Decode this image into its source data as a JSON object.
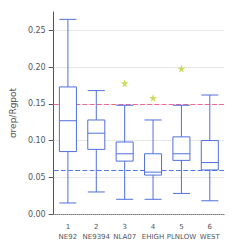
{
  "chart_data": {
    "type": "boxplot",
    "ylabel": "σrep/Rgpot",
    "categories": [
      "1\nNE92",
      "2\nNE9394",
      "3\nNLA07",
      "4\nEHIGH",
      "5\nPLNLOW",
      "6\nWEST"
    ],
    "boxes": [
      {
        "whisker_low": 0.015,
        "q1": 0.085,
        "median": 0.127,
        "q3": 0.173,
        "whisker_high": 0.265,
        "fliers": []
      },
      {
        "whisker_low": 0.03,
        "q1": 0.088,
        "median": 0.11,
        "q3": 0.128,
        "whisker_high": 0.168,
        "fliers": []
      },
      {
        "whisker_low": 0.02,
        "q1": 0.072,
        "median": 0.082,
        "q3": 0.098,
        "whisker_high": 0.148,
        "fliers": [
          0.178
        ]
      },
      {
        "whisker_low": 0.02,
        "q1": 0.053,
        "median": 0.057,
        "q3": 0.082,
        "whisker_high": 0.128,
        "fliers": [
          0.158
        ]
      },
      {
        "whisker_low": 0.028,
        "q1": 0.073,
        "median": 0.082,
        "q3": 0.105,
        "whisker_high": 0.148,
        "fliers": [
          0.198
        ]
      },
      {
        "whisker_low": 0.018,
        "q1": 0.06,
        "median": 0.07,
        "q3": 0.1,
        "whisker_high": 0.162,
        "fliers": []
      }
    ],
    "marker": "star",
    "reference_lines": [
      {
        "value": 0.055,
        "color": "#5577ee",
        "line_style": "dashed"
      },
      {
        "value": 0.15,
        "color": "#ee6699",
        "line_style": "dashed"
      }
    ],
    "ylim": [
      0.0,
      0.275
    ],
    "yticks": [
      {
        "value": 0,
        "label": "0.00"
      },
      0.05,
      {
        "value": 0.1,
        "label": "0.10"
      },
      0.15,
      {
        "value": 0.2,
        "label": "0.20"
      },
      0.25
    ],
    "grid": true
  }
}
